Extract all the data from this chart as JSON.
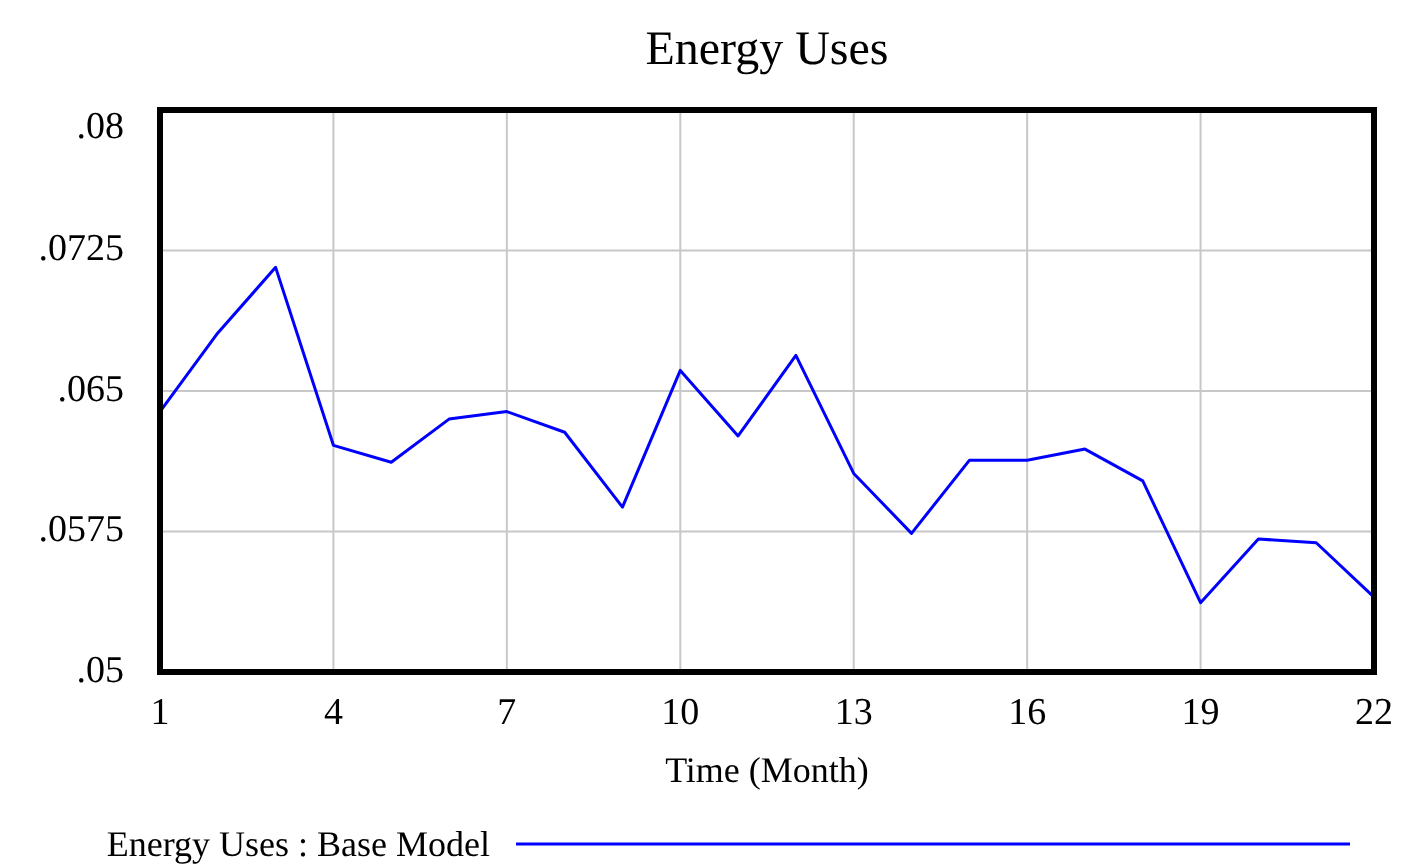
{
  "chart_data": {
    "type": "line",
    "title": "Energy Uses",
    "xlabel": "Time (Month)",
    "x": [
      1,
      2,
      3,
      4,
      5,
      6,
      7,
      8,
      9,
      10,
      11,
      12,
      13,
      14,
      15,
      16,
      17,
      18,
      19,
      20,
      21,
      22
    ],
    "series": [
      {
        "name": "Energy Uses : Base Model",
        "color": "#0000ff",
        "values": [
          0.0639,
          0.0681,
          0.0716,
          0.0621,
          0.0612,
          0.0635,
          0.0639,
          0.0628,
          0.0588,
          0.0661,
          0.0626,
          0.0669,
          0.0606,
          0.0574,
          0.0613,
          0.0613,
          0.0619,
          0.0602,
          0.0537,
          0.0571,
          0.0569,
          0.054
        ]
      }
    ],
    "xlim": [
      1,
      22
    ],
    "xticks": [
      1,
      4,
      7,
      10,
      13,
      16,
      19,
      22
    ],
    "ylim": [
      0.05,
      0.08
    ],
    "yticks": [
      {
        "value": 0.05,
        "label": ".05"
      },
      {
        "value": 0.0575,
        "label": ".0575"
      },
      {
        "value": 0.065,
        "label": ".065"
      },
      {
        "value": 0.0725,
        "label": ".0725"
      },
      {
        "value": 0.08,
        "label": ".08"
      }
    ],
    "grid": true,
    "legend": "bottom",
    "line_style": "solid",
    "marker": "none"
  }
}
